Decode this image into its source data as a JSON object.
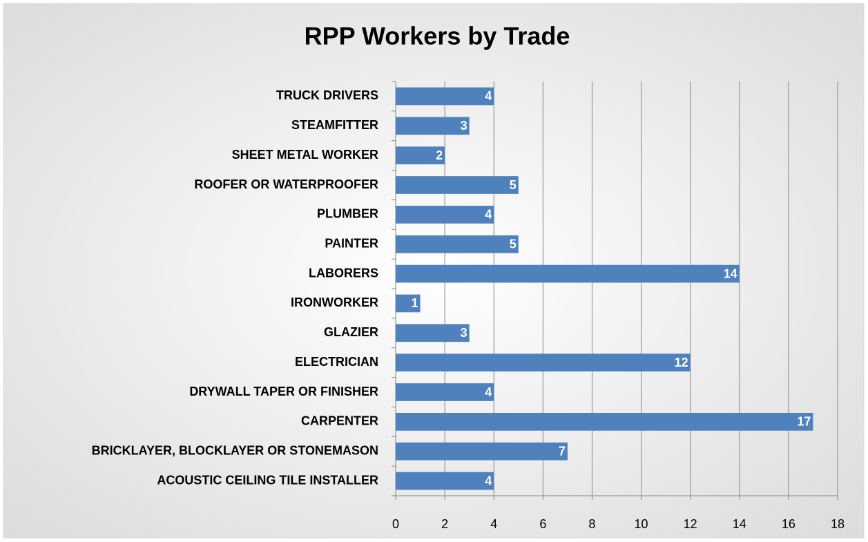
{
  "chart_data": {
    "type": "bar",
    "orientation": "horizontal",
    "title": "RPP Workers by Trade",
    "categories": [
      "ACOUSTIC CEILING TILE INSTALLER",
      "BRICKLAYER, BLOCKLAYER OR STONEMASON",
      "CARPENTER",
      "DRYWALL TAPER OR FINISHER",
      "ELECTRICIAN",
      "GLAZIER",
      "IRONWORKER",
      "LABORERS",
      "PAINTER",
      "PLUMBER",
      "ROOFER OR WATERPROOFER",
      "SHEET METAL WORKER",
      "STEAMFITTER",
      "TRUCK DRIVERS"
    ],
    "values": [
      4,
      7,
      17,
      4,
      12,
      3,
      1,
      14,
      5,
      4,
      5,
      2,
      3,
      4
    ],
    "color": "#4f81bd",
    "xlim": [
      0,
      18
    ],
    "xticks": [
      0,
      2,
      4,
      6,
      8,
      10,
      12,
      14,
      16,
      18
    ],
    "grid": true
  }
}
